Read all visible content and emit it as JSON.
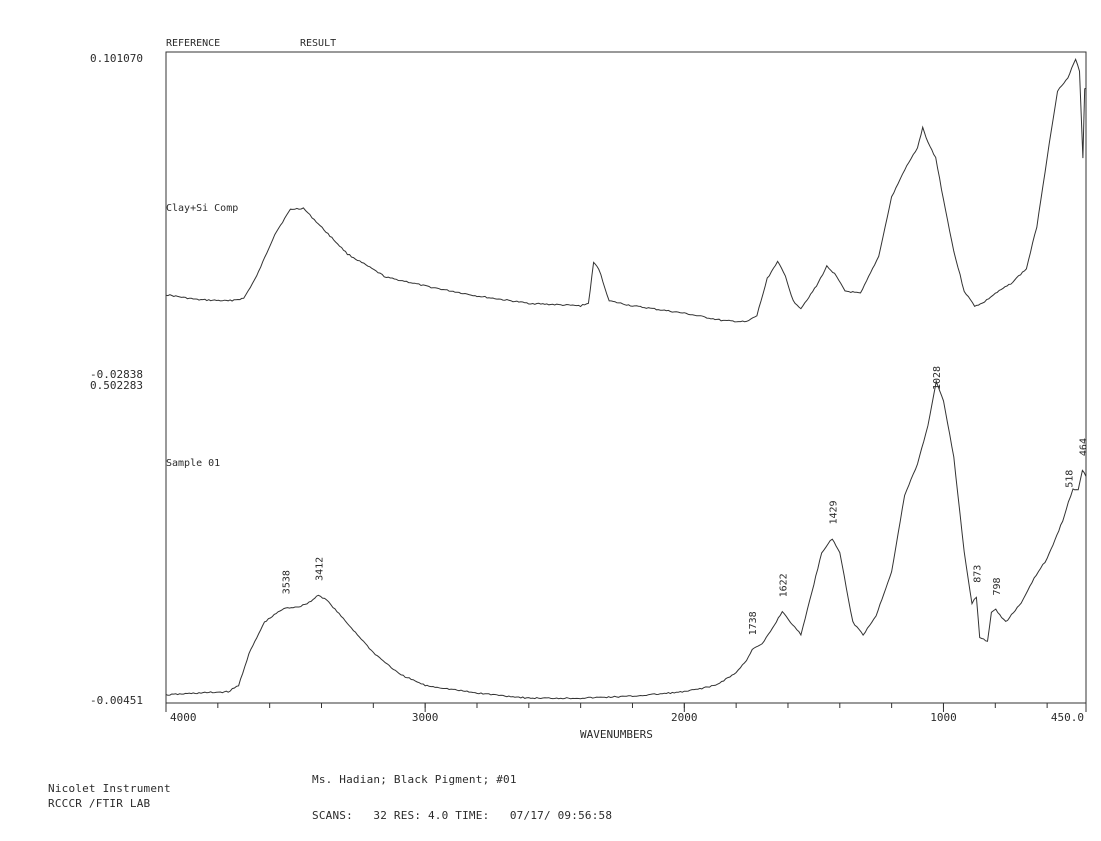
{
  "header": {
    "reference_label": "REFERENCE",
    "result_label": "RESULT"
  },
  "footer": {
    "instrument_line1": "Nicolet Instrument",
    "instrument_line2": "RCCCR /FTIR LAB",
    "sample_description": "Ms. Hadian; Black Pigment; #01",
    "scan_info": "SCANS:   32 RES: 4.0 TIME:   07/17/ 09:56:58"
  },
  "chart_data": {
    "type": "line",
    "x_axis": {
      "label": "WAVENUMBERS",
      "range": [
        4000,
        450
      ],
      "reversed": true,
      "tick_labels": [
        "4000",
        "3000",
        "2000",
        "1000",
        "450.0"
      ],
      "tick_values": [
        4000,
        3000,
        2000,
        1000,
        450
      ],
      "minor_tick_step": 200
    },
    "grid": false,
    "panels": [
      {
        "name": "Clay+Si Comp",
        "y_top_label": "0.101070",
        "y_bottom_label": "-0.02838",
        "ylim": [
          -0.02838,
          0.10107
        ],
        "points": [
          [
            4000,
            0.0045
          ],
          [
            3880,
            0.0025
          ],
          [
            3760,
            0.002
          ],
          [
            3700,
            0.003
          ],
          [
            3650,
            0.012
          ],
          [
            3580,
            0.029
          ],
          [
            3520,
            0.039
          ],
          [
            3470,
            0.0395
          ],
          [
            3420,
            0.034
          ],
          [
            3300,
            0.021
          ],
          [
            3150,
            0.0115
          ],
          [
            3080,
            0.01
          ],
          [
            3000,
            0.008
          ],
          [
            2800,
            0.004
          ],
          [
            2600,
            0.001
          ],
          [
            2400,
            0.0
          ],
          [
            2370,
            0.001
          ],
          [
            2350,
            0.0175
          ],
          [
            2330,
            0.015
          ],
          [
            2290,
            0.002
          ],
          [
            2200,
            0.0
          ],
          [
            2000,
            -0.003
          ],
          [
            1850,
            -0.006
          ],
          [
            1760,
            -0.0065
          ],
          [
            1720,
            -0.004
          ],
          [
            1680,
            0.011
          ],
          [
            1640,
            0.018
          ],
          [
            1610,
            0.012
          ],
          [
            1580,
            0.002
          ],
          [
            1550,
            -0.001
          ],
          [
            1490,
            0.008
          ],
          [
            1450,
            0.016
          ],
          [
            1420,
            0.013
          ],
          [
            1380,
            0.006
          ],
          [
            1320,
            0.005
          ],
          [
            1250,
            0.02
          ],
          [
            1200,
            0.044
          ],
          [
            1150,
            0.055
          ],
          [
            1100,
            0.064
          ],
          [
            1080,
            0.072
          ],
          [
            1060,
            0.066
          ],
          [
            1030,
            0.06
          ],
          [
            1000,
            0.043
          ],
          [
            960,
            0.022
          ],
          [
            920,
            0.006
          ],
          [
            880,
            0.0
          ],
          [
            850,
            0.001
          ],
          [
            800,
            0.005
          ],
          [
            740,
            0.009
          ],
          [
            680,
            0.015
          ],
          [
            640,
            0.032
          ],
          [
            600,
            0.06
          ],
          [
            560,
            0.087
          ],
          [
            520,
            0.092
          ],
          [
            490,
            0.1
          ],
          [
            475,
            0.095
          ],
          [
            462,
            0.06
          ],
          [
            455,
            0.088
          ],
          [
            450,
            0.088
          ]
        ]
      },
      {
        "name": "Sample 01",
        "y_top_label": "0.502283",
        "y_bottom_label": "-0.00451",
        "ylim": [
          -0.00451,
          0.502283
        ],
        "peak_labels": [
          "3538",
          "3412",
          "1738",
          "1622",
          "1429",
          "1028",
          "873",
          "798",
          "518",
          "464"
        ],
        "peak_positions": [
          3538,
          3412,
          1738,
          1622,
          1429,
          1028,
          873,
          798,
          518,
          464
        ],
        "points": [
          [
            4000,
            0.005
          ],
          [
            3880,
            0.008
          ],
          [
            3760,
            0.01
          ],
          [
            3720,
            0.02
          ],
          [
            3680,
            0.07
          ],
          [
            3620,
            0.12
          ],
          [
            3560,
            0.138
          ],
          [
            3538,
            0.142
          ],
          [
            3480,
            0.145
          ],
          [
            3440,
            0.153
          ],
          [
            3412,
            0.163
          ],
          [
            3380,
            0.155
          ],
          [
            3300,
            0.118
          ],
          [
            3200,
            0.072
          ],
          [
            3100,
            0.038
          ],
          [
            3000,
            0.02
          ],
          [
            2800,
            0.008
          ],
          [
            2600,
            0.0
          ],
          [
            2400,
            0.0
          ],
          [
            2200,
            0.003
          ],
          [
            2000,
            0.01
          ],
          [
            1880,
            0.02
          ],
          [
            1800,
            0.04
          ],
          [
            1760,
            0.06
          ],
          [
            1738,
            0.077
          ],
          [
            1700,
            0.085
          ],
          [
            1660,
            0.11
          ],
          [
            1622,
            0.137
          ],
          [
            1590,
            0.12
          ],
          [
            1550,
            0.1
          ],
          [
            1500,
            0.18
          ],
          [
            1470,
            0.23
          ],
          [
            1429,
            0.252
          ],
          [
            1400,
            0.23
          ],
          [
            1350,
            0.12
          ],
          [
            1310,
            0.1
          ],
          [
            1260,
            0.13
          ],
          [
            1200,
            0.2
          ],
          [
            1150,
            0.32
          ],
          [
            1100,
            0.37
          ],
          [
            1060,
            0.43
          ],
          [
            1028,
            0.5
          ],
          [
            1000,
            0.47
          ],
          [
            960,
            0.38
          ],
          [
            920,
            0.23
          ],
          [
            890,
            0.15
          ],
          [
            873,
            0.16
          ],
          [
            860,
            0.095
          ],
          [
            830,
            0.09
          ],
          [
            815,
            0.135
          ],
          [
            798,
            0.14
          ],
          [
            760,
            0.12
          ],
          [
            700,
            0.15
          ],
          [
            650,
            0.19
          ],
          [
            600,
            0.22
          ],
          [
            540,
            0.28
          ],
          [
            518,
            0.31
          ],
          [
            500,
            0.33
          ],
          [
            480,
            0.33
          ],
          [
            464,
            0.36
          ],
          [
            450,
            0.35
          ]
        ]
      }
    ]
  }
}
